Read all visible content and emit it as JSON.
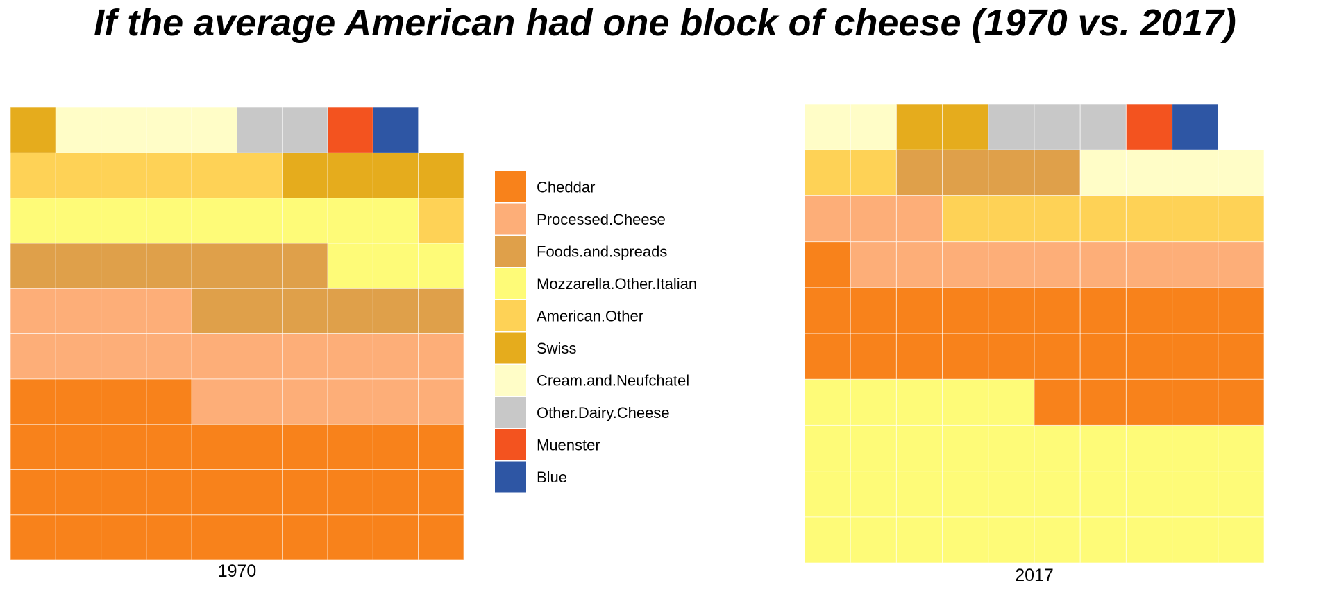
{
  "chart_data": {
    "type": "waffle",
    "title": "If the average American had one block of cheese (1970 vs. 2017)",
    "legend": {
      "placement": "center",
      "entries": [
        {
          "name": "Cheddar",
          "color": "#F8821B"
        },
        {
          "name": "Processed.Cheese",
          "color": "#FDAE78"
        },
        {
          "name": "Foods.and.spreads",
          "color": "#DFA04A"
        },
        {
          "name": "Mozzarella.Other.Italian",
          "color": "#FEFB78"
        },
        {
          "name": "American.Other",
          "color": "#FED256"
        },
        {
          "name": "Swiss",
          "color": "#E5AC1D"
        },
        {
          "name": "Cream.and.Neufchatel",
          "color": "#FFFDC7"
        },
        {
          "name": "Other.Dairy.Cheese",
          "color": "#C8C8C8"
        },
        {
          "name": "Muenster",
          "color": "#F3531F"
        },
        {
          "name": "Blue",
          "color": "#2E56A4"
        }
      ]
    },
    "panels": [
      {
        "label": "1970",
        "columns": 10,
        "values": [
          {
            "category": "Cheddar",
            "squares": 34
          },
          {
            "category": "Processed.Cheese",
            "squares": 20
          },
          {
            "category": "Foods.and.spreads",
            "squares": 13
          },
          {
            "category": "Mozzarella.Other.Italian",
            "squares": 12
          },
          {
            "category": "American.Other",
            "squares": 7
          },
          {
            "category": "Swiss",
            "squares": 5
          },
          {
            "category": "Cream.and.Neufchatel",
            "squares": 4
          },
          {
            "category": "Other.Dairy.Cheese",
            "squares": 2
          },
          {
            "category": "Muenster",
            "squares": 1
          },
          {
            "category": "Blue",
            "squares": 1
          }
        ]
      },
      {
        "label": "2017",
        "columns": 10,
        "values": [
          {
            "category": "Mozzarella.Other.Italian",
            "squares": 35
          },
          {
            "category": "Cheddar",
            "squares": 26
          },
          {
            "category": "Processed.Cheese",
            "squares": 12
          },
          {
            "category": "American.Other",
            "squares": 9
          },
          {
            "category": "Foods.and.spreads",
            "squares": 4
          },
          {
            "category": "Cream.and.Neufchatel",
            "squares": 6
          },
          {
            "category": "Swiss",
            "squares": 2
          },
          {
            "category": "Other.Dairy.Cheese",
            "squares": 3
          },
          {
            "category": "Muenster",
            "squares": 1
          },
          {
            "category": "Blue",
            "squares": 1
          }
        ]
      }
    ]
  }
}
